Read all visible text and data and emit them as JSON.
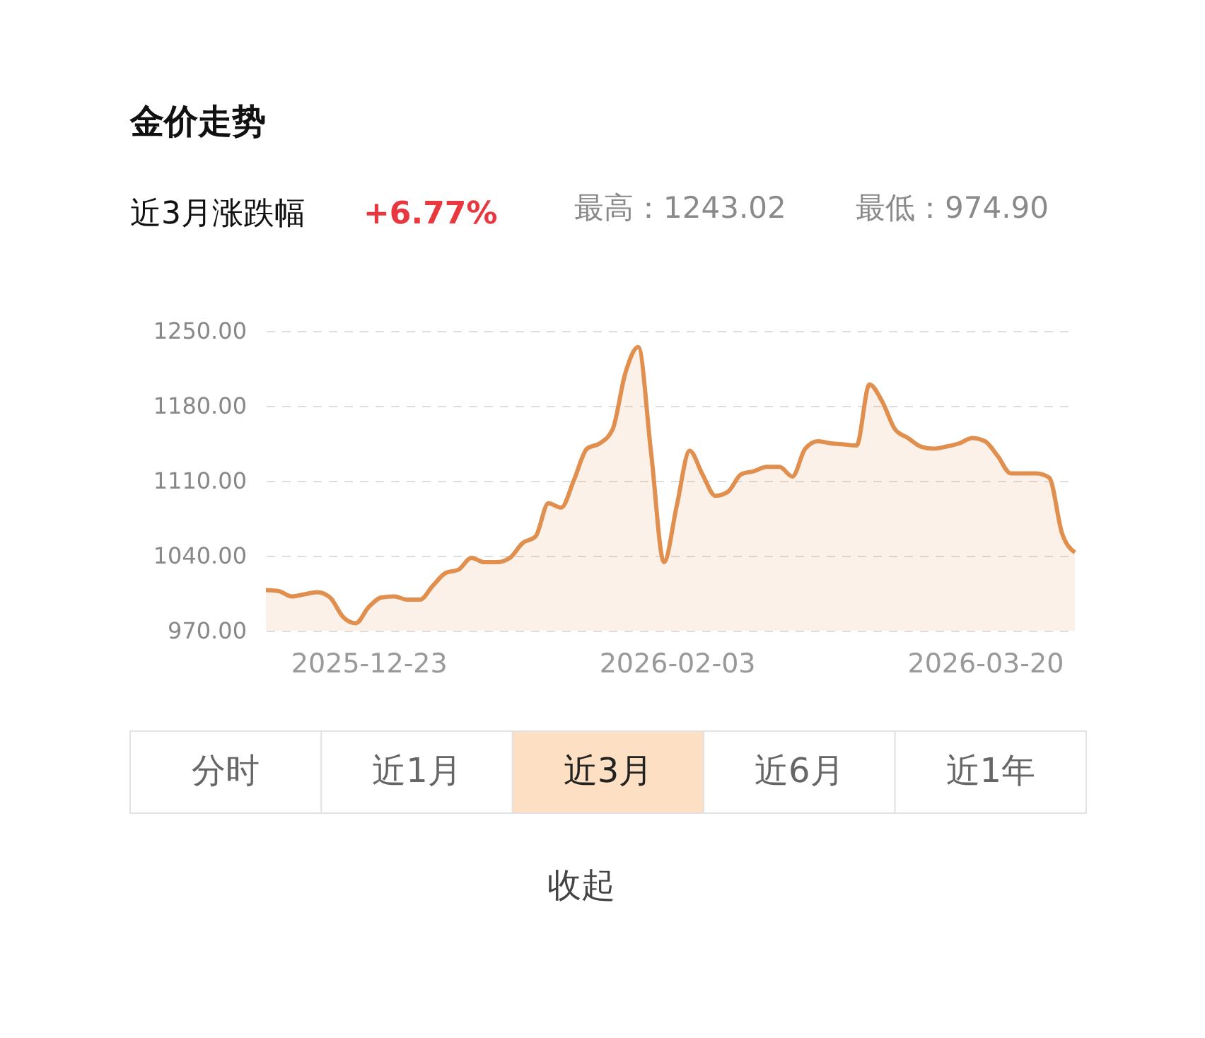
{
  "chart_data": {
    "type": "area",
    "title": "金价走势",
    "annotations": [
      "近3月涨跌幅",
      "+6.77%",
      "最高：1243.02",
      "最低：974.90",
      "分时",
      "近1月",
      "近3月",
      "近6月",
      "近1年",
      "收起"
    ],
    "categories": [
      null,
      null,
      null,
      null,
      null,
      null,
      null,
      null,
      "2025-12-23",
      null,
      null,
      null,
      null,
      null,
      null,
      null,
      null,
      null,
      null,
      null,
      null,
      null,
      null,
      null,
      null,
      null,
      null,
      null,
      null,
      null,
      null,
      null,
      "2026-02-03",
      null,
      null,
      null,
      null,
      null,
      null,
      null,
      null,
      null,
      null,
      null,
      null,
      null,
      null,
      null,
      null,
      null,
      null,
      null,
      null,
      null,
      null,
      null,
      "2026-03-20",
      null,
      null,
      null,
      null,
      null,
      null,
      null
    ],
    "series": [
      {
        "color": "#e08f4e",
        "values": [
          1008,
          1007,
          1002,
          1004,
          1006,
          1001,
          983,
          977,
          992,
          1001,
          1002,
          999,
          999,
          1012,
          1024,
          1027,
          1038,
          1034,
          1034,
          1038,
          1052,
          1058,
          1089,
          1085,
          1111,
          1140,
          1145,
          1158,
          1211,
          1235,
          1136,
          1034,
          1087,
          1138,
          1116,
          1096,
          1100,
          1116,
          1119,
          1123,
          1123,
          1114,
          1140,
          1147,
          1145,
          1144,
          1143,
          1200,
          1184,
          1158,
          1150,
          1142,
          1140,
          1142,
          1145,
          1150,
          1147,
          1133,
          1117,
          1117,
          1117,
          1113,
          1061,
          1043
        ]
      }
    ],
    "ylim": [
      970,
      1250
    ],
    "yticks": [
      {
        "value": 970,
        "label": "970.00"
      },
      {
        "value": 1040,
        "label": "1040.00"
      },
      {
        "value": 1110,
        "label": "1110.00"
      },
      {
        "value": 1180,
        "label": "1180.00"
      },
      {
        "value": 1250,
        "label": "1250.00"
      }
    ],
    "grid": "y",
    "line_style": "solid"
  }
}
